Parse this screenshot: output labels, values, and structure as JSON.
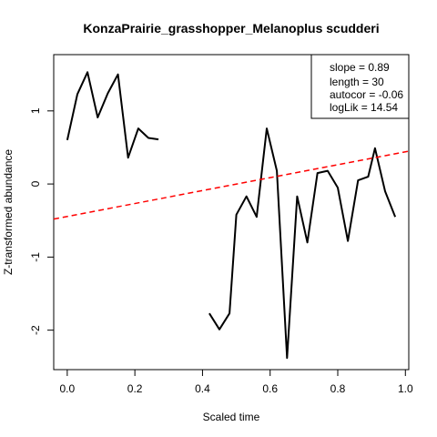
{
  "chart_data": {
    "type": "line",
    "title": "KonzaPrairie_grasshopper_Melanoplus scudderi",
    "xlabel": "Scaled time",
    "ylabel": "Z-transformed abundance",
    "xlim": [
      -0.04,
      1.01
    ],
    "ylim": [
      -2.54,
      1.77
    ],
    "x_ticks": [
      0.0,
      0.2,
      0.4,
      0.6,
      0.8,
      1.0
    ],
    "x_tick_labels": [
      "0.0",
      "0.2",
      "0.4",
      "0.6",
      "0.8",
      "1.0"
    ],
    "y_ticks": [
      -2,
      -1,
      0,
      1
    ],
    "y_tick_labels": [
      "-2",
      "-1",
      "0",
      "1"
    ],
    "series": [
      {
        "color": "#000000",
        "style": "solid",
        "x": [
          0.0,
          0.03,
          0.06,
          0.09,
          0.12,
          0.15,
          0.18,
          0.21,
          0.24,
          0.27,
          0.3,
          0.33,
          0.36,
          0.39,
          0.42,
          0.45,
          0.48,
          0.5,
          0.53,
          0.56,
          0.59,
          0.62,
          0.65,
          0.68,
          0.71,
          0.74,
          0.77,
          0.8,
          0.83,
          0.86,
          0.89,
          0.91,
          0.94,
          0.97
        ],
        "y": [
          0.6,
          1.23,
          1.53,
          0.91,
          1.24,
          1.5,
          0.36,
          0.76,
          0.63,
          0.61,
          null,
          null,
          null,
          null,
          -1.77,
          -1.99,
          -1.77,
          -0.42,
          -0.17,
          -0.45,
          0.76,
          0.18,
          -2.38,
          -0.17,
          -0.8,
          0.15,
          0.18,
          -0.05,
          -0.78,
          0.05,
          0.1,
          0.49,
          -0.1,
          -0.45
        ]
      },
      {
        "color": "#ff0000",
        "style": "dashed",
        "kind": "trend",
        "x": [
          -0.04,
          1.01
        ],
        "y": [
          -0.48,
          0.45
        ]
      }
    ],
    "legend": {
      "position": "top-right",
      "entries": [
        "slope = 0.89",
        "length = 30",
        "autocor = -0.06",
        "logLik = 14.54"
      ]
    }
  }
}
